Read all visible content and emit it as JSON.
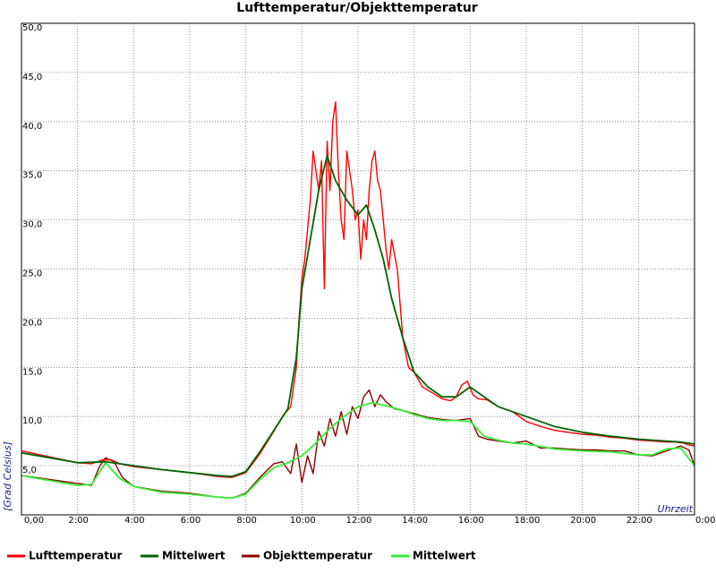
{
  "chart_data": {
    "type": "line",
    "title": "Lufttemperatur/Objekttemperatur",
    "xlabel": "Uhrzeit",
    "ylabel": "[Grad Celsius]",
    "xlim": [
      0,
      24
    ],
    "ylim": [
      0,
      50
    ],
    "x_ticks": [
      "0,00",
      "2:00",
      "4:00",
      "6:00",
      "8:00",
      "10:00",
      "12:00",
      "14:00",
      "16:00",
      "18:00",
      "20:00",
      "22:00",
      "0:00"
    ],
    "y_ticks": [
      "5,0",
      "10,0",
      "15,0",
      "20,0",
      "25,0",
      "30,0",
      "35,0",
      "40,0",
      "45,0",
      "50,0"
    ],
    "grid": true,
    "legend_position": "bottom",
    "series": [
      {
        "name": "Lufttemperatur",
        "color": "#ff0000",
        "x": [
          0,
          1,
          2,
          2.5,
          2.9,
          3.2,
          3.5,
          4,
          5,
          6,
          7,
          7.5,
          8,
          8.5,
          9,
          9.3,
          9.6,
          9.8,
          9.9,
          10,
          10.1,
          10.2,
          10.3,
          10.4,
          10.5,
          10.6,
          10.7,
          10.8,
          10.9,
          11,
          11.1,
          11.2,
          11.3,
          11.4,
          11.5,
          11.6,
          11.7,
          11.8,
          11.9,
          12,
          12.1,
          12.2,
          12.3,
          12.4,
          12.5,
          12.6,
          12.7,
          12.8,
          12.9,
          13,
          13.1,
          13.2,
          13.4,
          13.6,
          13.8,
          14,
          14.3,
          14.6,
          15,
          15.3,
          15.5,
          15.7,
          15.9,
          16.1,
          16.3,
          16.6,
          17,
          17.5,
          18,
          18.5,
          19,
          19.5,
          20,
          20.5,
          21,
          21.5,
          22,
          22.5,
          23,
          23.3,
          23.6,
          23.8,
          24
        ],
        "values": [
          6.5,
          5.9,
          5.3,
          5.2,
          5.6,
          5.6,
          5.2,
          4.9,
          4.6,
          4.3,
          3.9,
          3.8,
          4.3,
          6.2,
          8.5,
          10,
          11,
          15,
          20,
          24,
          26,
          29,
          32,
          37,
          35,
          33,
          36,
          23,
          38,
          33,
          40,
          42,
          35,
          30,
          28,
          37,
          35,
          33,
          30,
          31,
          26,
          30,
          28,
          33,
          36,
          37,
          34,
          33,
          30,
          27,
          25,
          28,
          25,
          18,
          15,
          14.5,
          13,
          12.5,
          11.8,
          11.6,
          12,
          13.2,
          13.6,
          12.2,
          11.8,
          11.7,
          11,
          10.5,
          9.5,
          9,
          8.6,
          8.4,
          8.2,
          8.1,
          7.9,
          7.8,
          7.6,
          7.5,
          7.4,
          7.4,
          7.3,
          7.1,
          7.0
        ]
      },
      {
        "name": "Mittelwert",
        "color": "#006400",
        "x": [
          0,
          1,
          2,
          3,
          4,
          5,
          6,
          7,
          7.5,
          8,
          8.5,
          9,
          9.5,
          9.8,
          10,
          10.3,
          10.6,
          10.9,
          11.2,
          11.6,
          12,
          12.3,
          12.6,
          12.9,
          13.2,
          13.6,
          14,
          14.5,
          15,
          15.5,
          16,
          16.5,
          17,
          18,
          19,
          20,
          21,
          22,
          23,
          23.5,
          24
        ],
        "values": [
          6.3,
          5.8,
          5.3,
          5.4,
          5.0,
          4.6,
          4.3,
          4.0,
          3.9,
          4.4,
          6.4,
          8.6,
          10.8,
          16,
          23,
          28,
          33,
          36.5,
          34,
          32,
          30.5,
          31.5,
          29,
          26,
          22,
          18,
          14.5,
          13,
          12,
          12,
          13,
          12,
          11,
          10,
          9,
          8.4,
          8.0,
          7.7,
          7.5,
          7.4,
          7.2
        ]
      },
      {
        "name": "Objekttemperatur",
        "color": "#8b0000",
        "x": [
          0,
          1,
          2,
          2.5,
          2.8,
          3,
          3.3,
          3.6,
          4,
          5,
          6,
          7,
          7.5,
          8,
          8.5,
          9,
          9.3,
          9.6,
          9.8,
          10,
          10.2,
          10.4,
          10.6,
          10.8,
          11,
          11.2,
          11.4,
          11.6,
          11.8,
          12,
          12.2,
          12.4,
          12.6,
          12.8,
          13,
          13.3,
          13.6,
          14,
          14.5,
          15,
          15.5,
          16,
          16.3,
          16.6,
          17,
          17.5,
          18,
          18.5,
          19,
          19.5,
          20,
          20.5,
          21,
          21.5,
          22,
          22.5,
          23,
          23.5,
          23.8,
          24
        ],
        "values": [
          4.0,
          3.6,
          3.2,
          3.0,
          5.0,
          5.8,
          5.4,
          3.8,
          2.9,
          2.4,
          2.2,
          1.8,
          1.7,
          2.2,
          3.8,
          5.2,
          5.4,
          4.2,
          7.2,
          3.3,
          6.0,
          4.2,
          8.5,
          7.0,
          9.8,
          8.0,
          10.5,
          8.2,
          11.0,
          9.8,
          12.0,
          12.7,
          11.0,
          12.2,
          11.5,
          10.8,
          10.6,
          10.3,
          9.9,
          9.7,
          9.6,
          9.8,
          8.0,
          7.7,
          7.5,
          7.3,
          7.5,
          6.8,
          6.8,
          6.7,
          6.6,
          6.6,
          6.5,
          6.5,
          6.1,
          6.0,
          6.5,
          7.0,
          6.6,
          5.0
        ]
      },
      {
        "name": "Mittelwert",
        "color": "#33ee33",
        "x": [
          0,
          1,
          2,
          2.5,
          3,
          3.5,
          4,
          5,
          6,
          7,
          7.5,
          8,
          8.5,
          9,
          9.5,
          10,
          10.5,
          11,
          11.5,
          12,
          12.5,
          13,
          13.5,
          14,
          14.5,
          15,
          15.5,
          16,
          16.5,
          17,
          17.5,
          18,
          19,
          20,
          21,
          22,
          22.5,
          23,
          23.5,
          24
        ],
        "values": [
          4.0,
          3.5,
          3.0,
          3.1,
          5.3,
          3.7,
          2.9,
          2.3,
          2.1,
          1.8,
          1.7,
          2.1,
          3.6,
          4.8,
          5.3,
          6.0,
          7.3,
          8.8,
          10.0,
          11.0,
          11.4,
          11.1,
          10.7,
          10.2,
          9.8,
          9.6,
          9.6,
          9.5,
          8.0,
          7.6,
          7.3,
          7.2,
          6.7,
          6.5,
          6.4,
          6.1,
          6.1,
          6.7,
          6.8,
          5.0
        ]
      }
    ]
  }
}
